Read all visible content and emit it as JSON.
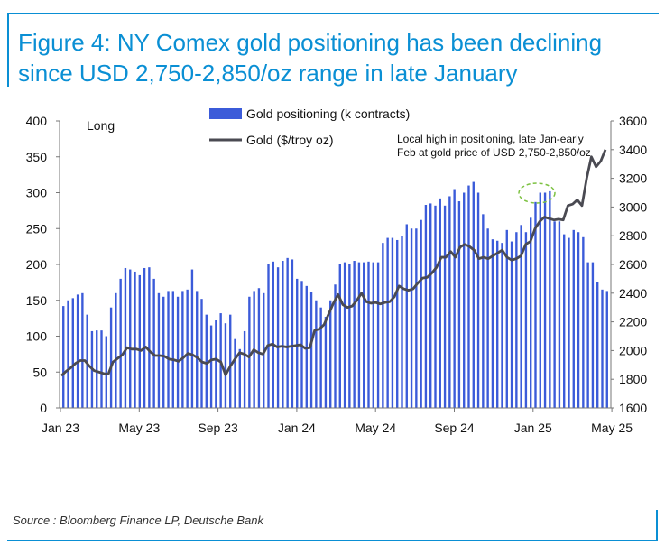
{
  "title": "Figure 4: NY Comex gold positioning has been declining since USD 2,750-2,850/oz range in late January",
  "source": "Source : Bloomberg Finance LP, Deutsche Bank",
  "colors": {
    "accent": "#0a8fd4",
    "bar": "#3b5bd9",
    "line": "#4a4a52",
    "annotation_circle": "#7dc242"
  },
  "chart_data": {
    "type": "bar",
    "panel_label": "Long",
    "annotation": "Local high in positioning, late Jan-early Feb at gold price of USD 2,750-2,850/oz",
    "legend": {
      "placement": "top-center"
    },
    "x_tick_labels": [
      "Jan 23",
      "May 23",
      "Sep 23",
      "Jan 24",
      "May 24",
      "Sep 24",
      "Jan 25",
      "May 25"
    ],
    "left_axis": {
      "ylim": [
        0,
        400
      ],
      "ticks": [
        0,
        50,
        100,
        150,
        200,
        250,
        300,
        350,
        400
      ]
    },
    "right_axis": {
      "ylim": [
        1600,
        3600
      ],
      "ticks": [
        1600,
        1800,
        2000,
        2200,
        2400,
        2600,
        2800,
        3000,
        3200,
        3400,
        3600
      ]
    },
    "grid": false,
    "series": [
      {
        "name": "Gold positioning (k contracts)",
        "type": "bar",
        "axis": "left",
        "values": [
          142,
          150,
          153,
          158,
          160,
          130,
          107,
          108,
          108,
          100,
          140,
          160,
          180,
          195,
          193,
          190,
          185,
          195,
          196,
          180,
          160,
          155,
          163,
          163,
          155,
          163,
          165,
          193,
          163,
          152,
          130,
          115,
          122,
          132,
          118,
          130,
          96,
          82,
          107,
          155,
          163,
          167,
          160,
          200,
          204,
          196,
          205,
          209,
          207,
          180,
          177,
          170,
          162,
          150,
          140,
          127,
          150,
          172,
          200,
          203,
          201,
          205,
          203,
          203,
          204,
          203,
          203,
          230,
          237,
          237,
          234,
          240,
          256,
          250,
          250,
          262,
          283,
          285,
          282,
          292,
          282,
          295,
          305,
          288,
          300,
          310,
          315,
          300,
          270,
          250,
          235,
          233,
          230,
          248,
          232,
          245,
          255,
          245,
          265,
          287,
          300,
          300,
          302,
          260,
          260,
          242,
          237,
          248,
          245,
          238,
          203,
          203,
          176,
          165,
          163
        ]
      },
      {
        "name": "Gold ($/troy oz)",
        "type": "line",
        "axis": "right",
        "values": [
          1825,
          1855,
          1880,
          1910,
          1930,
          1930,
          1890,
          1860,
          1850,
          1840,
          1835,
          1920,
          1945,
          1970,
          2020,
          2010,
          2010,
          2000,
          2025,
          1990,
          1965,
          1965,
          1960,
          1940,
          1935,
          1925,
          1950,
          1980,
          1970,
          1950,
          1920,
          1910,
          1935,
          1940,
          1920,
          1830,
          1890,
          1940,
          1985,
          1975,
          1955,
          2005,
          1985,
          1975,
          2035,
          2045,
          2025,
          2030,
          2025,
          2030,
          2035,
          2040,
          2015,
          2020,
          2140,
          2150,
          2180,
          2255,
          2330,
          2390,
          2320,
          2300,
          2310,
          2350,
          2400,
          2340,
          2330,
          2335,
          2325,
          2335,
          2340,
          2375,
          2450,
          2430,
          2420,
          2430,
          2470,
          2505,
          2510,
          2540,
          2580,
          2650,
          2650,
          2690,
          2650,
          2720,
          2740,
          2725,
          2700,
          2640,
          2650,
          2640,
          2660,
          2680,
          2700,
          2650,
          2630,
          2640,
          2660,
          2740,
          2760,
          2850,
          2900,
          2930,
          2920,
          2910,
          2915,
          2910,
          3010,
          3020,
          3050,
          3010,
          3200,
          3350,
          3280,
          3320,
          3400
        ]
      }
    ]
  }
}
